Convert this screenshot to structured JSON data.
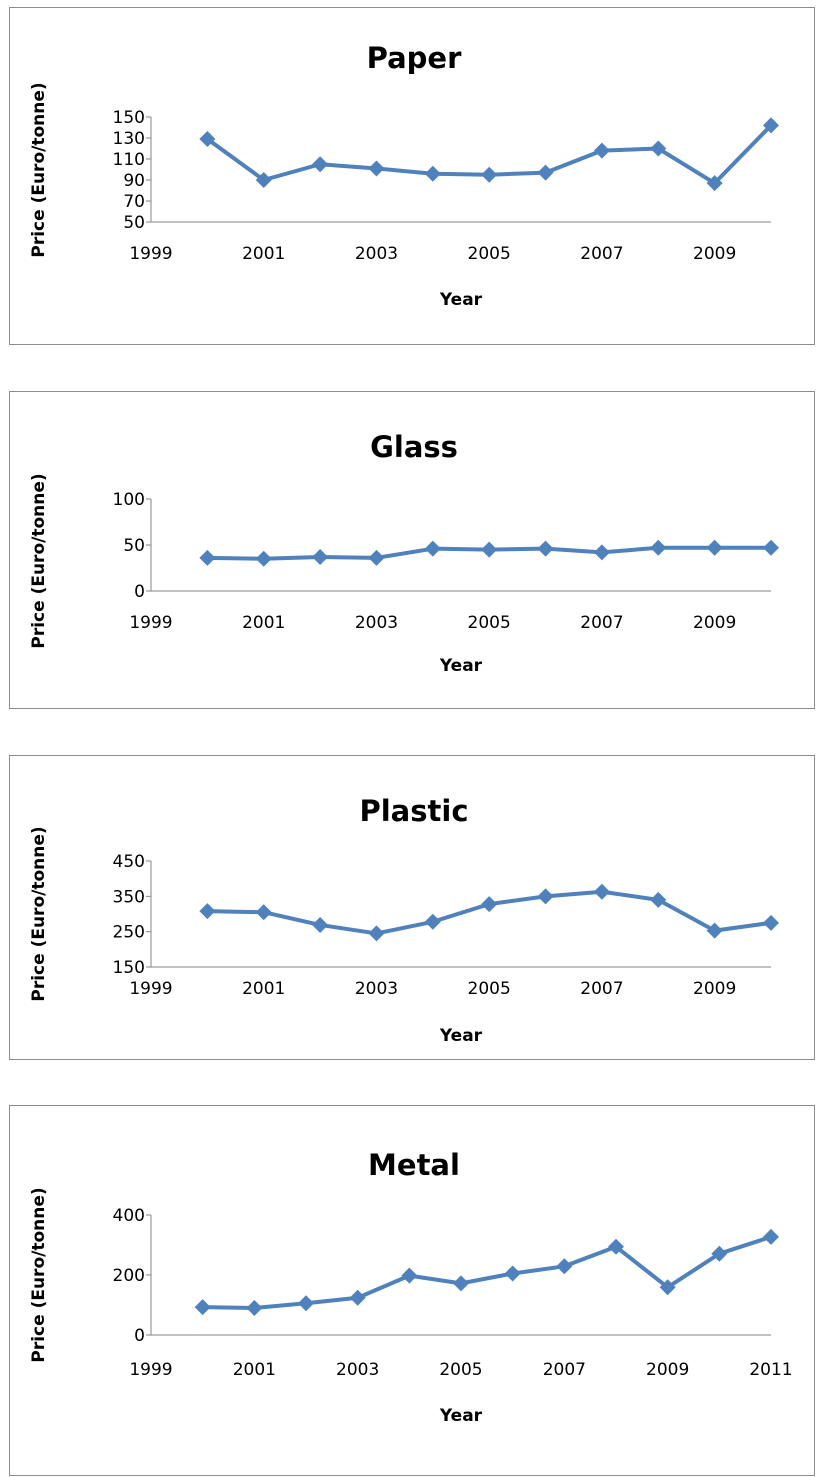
{
  "chart_data": [
    {
      "type": "line",
      "title": "Paper",
      "xlabel": "Year",
      "ylabel": "Price (Euro/tonne)",
      "x": [
        2000,
        2001,
        2002,
        2003,
        2004,
        2005,
        2006,
        2007,
        2008,
        2009,
        2010
      ],
      "series": [
        {
          "values": [
            129,
            90,
            105,
            101,
            96,
            95,
            97,
            118,
            120,
            87,
            142
          ]
        }
      ],
      "xlim": [
        1999,
        2010
      ],
      "xticks": [
        1999,
        2001,
        2003,
        2005,
        2007,
        2009
      ],
      "ylim": [
        50,
        150
      ],
      "yticks": [
        50,
        70,
        90,
        110,
        130,
        150
      ],
      "grid": false,
      "color": "#4f81bd"
    },
    {
      "type": "line",
      "title": "Glass",
      "xlabel": "Year",
      "ylabel": "Price (Euro/tonne)",
      "x": [
        2000,
        2001,
        2002,
        2003,
        2004,
        2005,
        2006,
        2007,
        2008,
        2009,
        2010
      ],
      "series": [
        {
          "values": [
            36,
            35,
            37,
            36,
            46,
            45,
            46,
            42,
            47,
            47,
            47
          ]
        }
      ],
      "xlim": [
        1999,
        2010
      ],
      "xticks": [
        1999,
        2001,
        2003,
        2005,
        2007,
        2009
      ],
      "ylim": [
        0,
        100
      ],
      "yticks": [
        0,
        50,
        100
      ],
      "grid": false,
      "color": "#4f81bd"
    },
    {
      "type": "line",
      "title": "Plastic",
      "xlabel": "Year",
      "ylabel": "Price (Euro/tonne)",
      "x": [
        2000,
        2001,
        2002,
        2003,
        2004,
        2005,
        2006,
        2007,
        2008,
        2009,
        2010
      ],
      "series": [
        {
          "values": [
            308,
            305,
            269,
            245,
            278,
            328,
            350,
            363,
            340,
            253,
            275
          ]
        }
      ],
      "xlim": [
        1999,
        2010
      ],
      "xticks": [
        1999,
        2001,
        2003,
        2005,
        2007,
        2009
      ],
      "ylim": [
        150,
        450
      ],
      "yticks": [
        150,
        250,
        350,
        450
      ],
      "grid": false,
      "color": "#4f81bd"
    },
    {
      "type": "line",
      "title": "Metal",
      "xlabel": "Year",
      "ylabel": "Price (Euro/tonne)",
      "x": [
        2000,
        2001,
        2002,
        2003,
        2004,
        2005,
        2006,
        2007,
        2008,
        2009,
        2010,
        2011
      ],
      "series": [
        {
          "values": [
            93,
            90,
            106,
            124,
            198,
            172,
            205,
            229,
            294,
            159,
            271,
            327
          ]
        }
      ],
      "xlim": [
        1999,
        2011
      ],
      "xticks": [
        1999,
        2001,
        2003,
        2005,
        2007,
        2009,
        2011
      ],
      "ylim": [
        0,
        400
      ],
      "yticks": [
        0,
        200,
        400
      ],
      "grid": false,
      "color": "#4f81bd"
    }
  ]
}
